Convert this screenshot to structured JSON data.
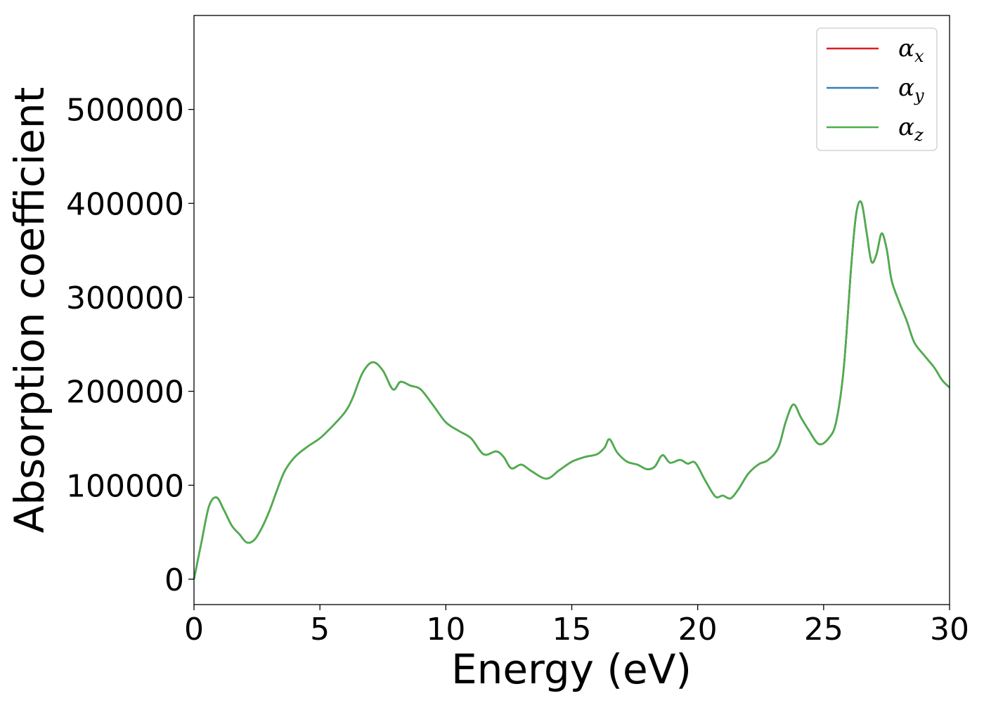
{
  "chart_data": {
    "type": "line",
    "title": "",
    "xlabel": "Energy (eV)",
    "ylabel": "Absorption coefficient",
    "xlim": [
      0,
      30
    ],
    "ylim": [
      -27000,
      600000
    ],
    "x_ticks": [
      0,
      5,
      10,
      15,
      20,
      25,
      30
    ],
    "x_tick_labels": [
      "0",
      "5",
      "10",
      "15",
      "20",
      "25",
      "30"
    ],
    "y_ticks": [
      0,
      100000,
      200000,
      300000,
      400000,
      500000
    ],
    "y_tick_labels": [
      "0",
      "100000",
      "200000",
      "300000",
      "400000",
      "500000"
    ],
    "grid": false,
    "legend": {
      "placement": "top-right",
      "entries": [
        {
          "symbol": "α",
          "subscript": "x",
          "color": "#e41a1c"
        },
        {
          "symbol": "α",
          "subscript": "y",
          "color": "#377eb8"
        },
        {
          "symbol": "α",
          "subscript": "z",
          "color": "#4daf4a"
        }
      ]
    },
    "x": [
      0,
      0.3,
      0.6,
      0.9,
      1.2,
      1.5,
      1.8,
      2.1,
      2.4,
      2.7,
      3.0,
      3.3,
      3.6,
      4.0,
      4.5,
      5.0,
      5.5,
      6.0,
      6.3,
      6.7,
      7.1,
      7.5,
      7.9,
      8.2,
      8.6,
      9.0,
      9.5,
      10.0,
      10.5,
      11.0,
      11.5,
      12.0,
      12.3,
      12.6,
      13.0,
      13.4,
      14.0,
      14.5,
      15.0,
      15.5,
      16.0,
      16.3,
      16.5,
      16.8,
      17.2,
      17.6,
      18.0,
      18.3,
      18.6,
      18.9,
      19.3,
      19.6,
      19.9,
      20.3,
      20.7,
      21.0,
      21.3,
      21.6,
      22.0,
      22.4,
      22.8,
      23.2,
      23.5,
      23.8,
      24.1,
      24.4,
      24.8,
      25.2,
      25.5,
      25.8,
      26.1,
      26.3,
      26.5,
      26.7,
      26.9,
      27.1,
      27.3,
      27.5,
      27.7,
      28.0,
      28.3,
      28.6,
      29.0,
      29.4,
      29.7,
      30.0
    ],
    "series": [
      {
        "name": "αx",
        "color": "#e41a1c",
        "values": [
          0,
          40000,
          78000,
          87000,
          73000,
          57000,
          48000,
          39000,
          42000,
          55000,
          73000,
          95000,
          115000,
          130000,
          141000,
          150000,
          163000,
          178000,
          193000,
          220000,
          231000,
          222000,
          202000,
          210000,
          206000,
          202000,
          185000,
          167000,
          158000,
          150000,
          133000,
          136000,
          130000,
          118000,
          122000,
          115000,
          107000,
          116000,
          125000,
          130000,
          133000,
          140000,
          149000,
          135000,
          125000,
          122000,
          117000,
          120000,
          132000,
          124000,
          127000,
          123000,
          124000,
          105000,
          88000,
          89000,
          86000,
          95000,
          112000,
          122000,
          127000,
          140000,
          168000,
          186000,
          172000,
          159000,
          144000,
          150000,
          168000,
          225000,
          335000,
          390000,
          401000,
          370000,
          338000,
          346000,
          368000,
          352000,
          318000,
          295000,
          275000,
          252000,
          238000,
          225000,
          212000,
          204000
        ]
      },
      {
        "name": "αy",
        "color": "#377eb8",
        "values": [
          0,
          40000,
          78000,
          87000,
          73000,
          57000,
          48000,
          39000,
          42000,
          55000,
          73000,
          95000,
          115000,
          130000,
          141000,
          150000,
          163000,
          178000,
          193000,
          220000,
          231000,
          222000,
          202000,
          210000,
          206000,
          202000,
          185000,
          167000,
          158000,
          150000,
          133000,
          136000,
          130000,
          118000,
          122000,
          115000,
          107000,
          116000,
          125000,
          130000,
          133000,
          140000,
          149000,
          135000,
          125000,
          122000,
          117000,
          120000,
          132000,
          124000,
          127000,
          123000,
          124000,
          105000,
          88000,
          89000,
          86000,
          95000,
          112000,
          122000,
          127000,
          140000,
          168000,
          186000,
          172000,
          159000,
          144000,
          150000,
          168000,
          225000,
          335000,
          390000,
          401000,
          370000,
          338000,
          346000,
          368000,
          352000,
          318000,
          295000,
          275000,
          252000,
          238000,
          225000,
          212000,
          204000
        ]
      },
      {
        "name": "αz",
        "color": "#4daf4a",
        "values": [
          0,
          40000,
          78000,
          87000,
          73000,
          57000,
          48000,
          39000,
          42000,
          55000,
          73000,
          95000,
          115000,
          130000,
          141000,
          150000,
          163000,
          178000,
          193000,
          220000,
          231000,
          222000,
          202000,
          210000,
          206000,
          202000,
          185000,
          167000,
          158000,
          150000,
          133000,
          136000,
          130000,
          118000,
          122000,
          115000,
          107000,
          116000,
          125000,
          130000,
          133000,
          140000,
          149000,
          135000,
          125000,
          122000,
          117000,
          120000,
          132000,
          124000,
          127000,
          123000,
          124000,
          105000,
          88000,
          89000,
          86000,
          95000,
          112000,
          122000,
          127000,
          140000,
          168000,
          186000,
          172000,
          159000,
          144000,
          150000,
          168000,
          225000,
          335000,
          390000,
          401000,
          370000,
          338000,
          346000,
          368000,
          352000,
          318000,
          295000,
          275000,
          252000,
          238000,
          225000,
          212000,
          204000
        ]
      }
    ]
  }
}
